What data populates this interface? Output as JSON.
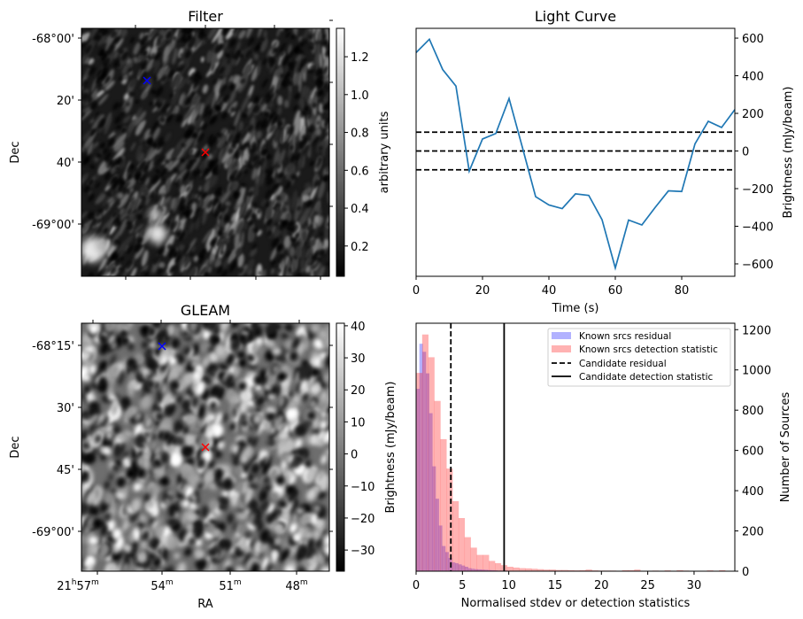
{
  "chart_data": [
    {
      "type": "heatmap",
      "title": "Filter",
      "xlabel": "",
      "ylabel": "Dec",
      "yticks": [
        "-68°00'",
        "20'",
        "40'",
        "-69°00'"
      ],
      "colorbar": {
        "label": "arbitrary units",
        "range": [
          0.04,
          1.35
        ],
        "ticks": [
          "0.2",
          "0.4",
          "0.6",
          "0.8",
          "1.0",
          "1.2"
        ],
        "tick_values": [
          0.2,
          0.4,
          0.6,
          0.8,
          1.0,
          1.2
        ],
        "colormap": "gray"
      },
      "markers": [
        {
          "symbol": "x",
          "color": "#0000ff"
        },
        {
          "symbol": "x",
          "color": "#ff0000"
        }
      ]
    },
    {
      "type": "line",
      "title": "Light Curve",
      "xlabel": "Time (s)",
      "ylabel": "Brightness (mJy/beam)",
      "xlim": [
        0,
        96
      ],
      "ylim": [
        -666,
        652
      ],
      "xticks": [
        "0",
        "20",
        "40",
        "60",
        "80"
      ],
      "xtick_values": [
        0,
        20,
        40,
        60,
        80
      ],
      "yticks": [
        "−600",
        "−400",
        "−200",
        "0",
        "200",
        "400",
        "600"
      ],
      "ytick_values": [
        -600,
        -400,
        -200,
        0,
        200,
        400,
        600
      ],
      "series": [
        {
          "name": "light curve",
          "color": "#1f77b4",
          "x": [
            0,
            4,
            8,
            12,
            16,
            20,
            24,
            28,
            32,
            36,
            40,
            44,
            48,
            52,
            56,
            60,
            64,
            68,
            72,
            76,
            80,
            84,
            88,
            92,
            96
          ],
          "y": [
            523,
            594,
            433,
            345,
            -107,
            64,
            93,
            279,
            20,
            -243,
            -287,
            -306,
            -228,
            -236,
            -365,
            -622,
            -367,
            -393,
            -300,
            -212,
            -215,
            38,
            158,
            125,
            220
          ]
        }
      ],
      "hlines": [
        {
          "y": 100,
          "style": "dashed"
        },
        {
          "y": 0,
          "style": "dashed"
        },
        {
          "y": -100,
          "style": "dashed"
        }
      ]
    },
    {
      "type": "heatmap",
      "title": "GLEAM",
      "xlabel": "RA",
      "ylabel": "Dec",
      "xticks": [
        [
          "21",
          "h",
          "57",
          "m"
        ],
        [
          "",
          "",
          "54",
          "m"
        ],
        [
          "",
          "",
          "51",
          "m"
        ],
        [
          "",
          "",
          "48",
          "m"
        ]
      ],
      "yticks": [
        "-68°15'",
        "30'",
        "45'",
        "-69°00'"
      ],
      "colorbar": {
        "label": "Brightness (mJy/beam)",
        "range": [
          -36.6,
          40.8
        ],
        "ticks": [
          "−30",
          "−20",
          "−10",
          "0",
          "10",
          "20",
          "30",
          "40"
        ],
        "tick_values": [
          -30,
          -20,
          -10,
          0,
          10,
          20,
          30,
          40
        ],
        "colormap": "gray"
      },
      "markers": [
        {
          "symbol": "x",
          "color": "#0000ff"
        },
        {
          "symbol": "x",
          "color": "#ff0000"
        }
      ]
    },
    {
      "type": "bar",
      "title": "",
      "xlabel": "Normalised stdev or detection statistics",
      "ylabel": "Number of Sources",
      "xlim": [
        0,
        34.4
      ],
      "ylim": [
        0,
        1232
      ],
      "xticks": [
        "0",
        "5",
        "10",
        "15",
        "20",
        "25",
        "30"
      ],
      "xtick_values": [
        0,
        5,
        10,
        15,
        20,
        25,
        30
      ],
      "yticks": [
        "0",
        "200",
        "400",
        "600",
        "800",
        "1000",
        "1200"
      ],
      "ytick_values": [
        0,
        200,
        400,
        600,
        800,
        1000,
        1200
      ],
      "series": [
        {
          "name": "Known srcs residual",
          "color": "#0000ff",
          "alpha": 0.3,
          "bin_start": 0,
          "bin_width": 0.35,
          "values": [
            906,
            1130,
            1090,
            983,
            785,
            521,
            360,
            227,
            125,
            95,
            66,
            44,
            40,
            34,
            28,
            22,
            15,
            12,
            10,
            9,
            8,
            7,
            6,
            5,
            4,
            3,
            3,
            3,
            2,
            2,
            2,
            2,
            1,
            1,
            1,
            1,
            1,
            1,
            1,
            1,
            1,
            1,
            1,
            1,
            1,
            0,
            0,
            0,
            1,
            0,
            0,
            2,
            0,
            0,
            1
          ]
        },
        {
          "name": "Known srcs detection statistic",
          "color": "#ff0000",
          "alpha": 0.3,
          "bin_start": 0,
          "bin_width": 0.654,
          "values": [
            985,
            1176,
            1063,
            846,
            656,
            510,
            348,
            264,
            169,
            117,
            81,
            81,
            51,
            40,
            30,
            22,
            18,
            15,
            14,
            12,
            10,
            8,
            8,
            6,
            6,
            5,
            4,
            5,
            8,
            4,
            3,
            3,
            3,
            2,
            5,
            5,
            8,
            2,
            2,
            3,
            0,
            4,
            2,
            5,
            3,
            0,
            2,
            0,
            4,
            0,
            5
          ]
        }
      ],
      "vlines": [
        {
          "name": "Candidate residual",
          "x": 3.75,
          "style": "dashed"
        },
        {
          "name": "Candidate detection statistic",
          "x": 9.5,
          "style": "solid"
        }
      ],
      "legend": {
        "placement": "top-right",
        "entries": [
          "Known srcs residual",
          "Known srcs detection statistic",
          "Candidate residual",
          "Candidate detection statistic"
        ]
      }
    }
  ]
}
